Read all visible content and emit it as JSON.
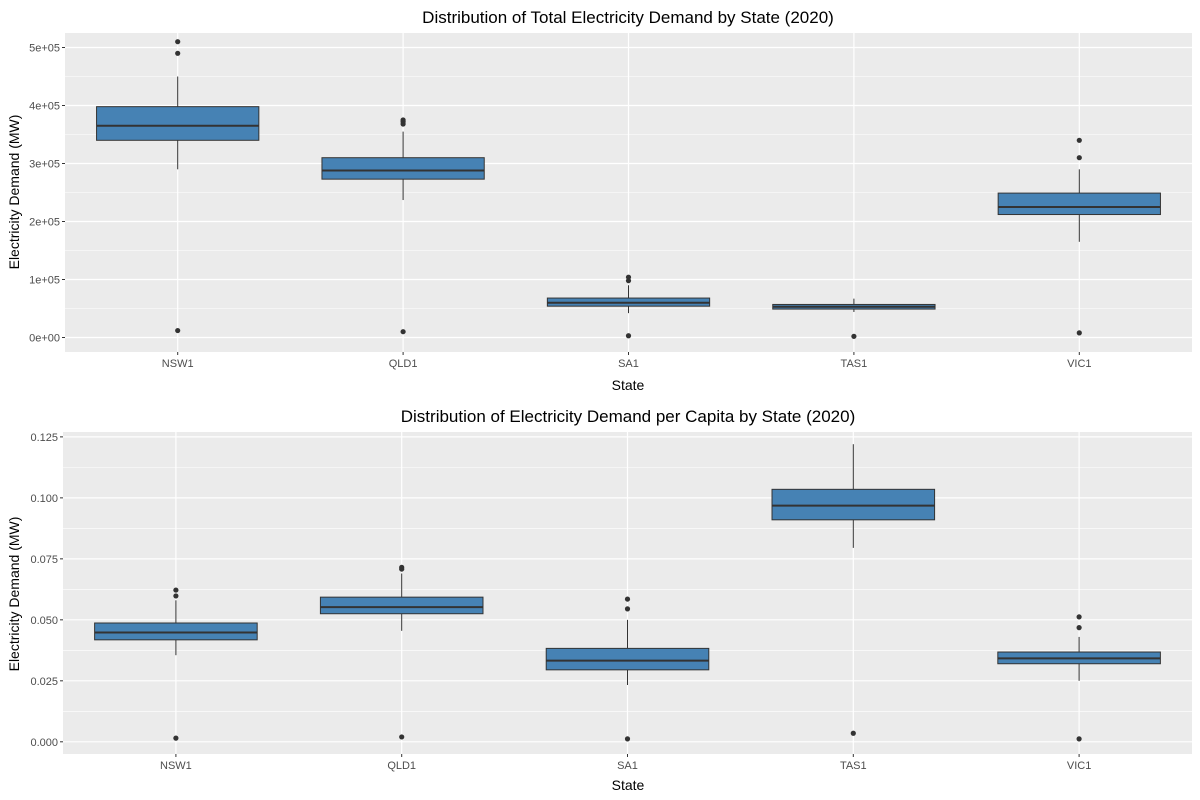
{
  "chart_data": [
    {
      "type": "boxplot",
      "title": "Distribution of Total Electricity Demand by State (2020)",
      "xlabel": "State",
      "ylabel": "Electricity Demand (MW)",
      "ylim": [
        -25000,
        525000
      ],
      "ytick_values": [
        0,
        100000,
        200000,
        300000,
        400000,
        500000
      ],
      "ytick_labels": [
        "0e+00",
        "1e+05",
        "2e+05",
        "3e+05",
        "4e+05",
        "5e+05"
      ],
      "grid": true,
      "categories": [
        "NSW1",
        "QLD1",
        "SA1",
        "TAS1",
        "VIC1"
      ],
      "boxes": [
        {
          "q1": 340000,
          "median": 365000,
          "q3": 398000,
          "whisker_low": 290000,
          "whisker_high": 450000,
          "outliers": [
            510000,
            490000,
            12000
          ]
        },
        {
          "q1": 273000,
          "median": 288000,
          "q3": 310000,
          "whisker_low": 237000,
          "whisker_high": 355000,
          "outliers": [
            375000,
            372000,
            368000,
            10000
          ]
        },
        {
          "q1": 54000,
          "median": 60000,
          "q3": 68000,
          "whisker_low": 42000,
          "whisker_high": 90000,
          "outliers": [
            104000,
            98000,
            3000
          ]
        },
        {
          "q1": 49000,
          "median": 53000,
          "q3": 57000,
          "whisker_low": 44000,
          "whisker_high": 67000,
          "outliers": [
            2000
          ]
        },
        {
          "q1": 212000,
          "median": 225000,
          "q3": 249000,
          "whisker_low": 165000,
          "whisker_high": 290000,
          "outliers": [
            340000,
            310000,
            8000
          ]
        }
      ]
    },
    {
      "type": "boxplot",
      "title": "Distribution of Electricity Demand per Capita by State (2020)",
      "xlabel": "State",
      "ylabel": "Electricity Demand (MW)",
      "ylim": [
        -0.005,
        0.127
      ],
      "ytick_values": [
        0,
        0.025,
        0.05,
        0.075,
        0.1,
        0.125
      ],
      "ytick_labels": [
        "0.000",
        "0.025",
        "0.050",
        "0.075",
        "0.100",
        "0.125"
      ],
      "grid": true,
      "categories": [
        "NSW1",
        "QLD1",
        "SA1",
        "TAS1",
        "VIC1"
      ],
      "boxes": [
        {
          "q1": 0.0418,
          "median": 0.0448,
          "q3": 0.0487,
          "whisker_low": 0.0355,
          "whisker_high": 0.058,
          "outliers": [
            0.0622,
            0.0598,
            0.0015
          ]
        },
        {
          "q1": 0.0525,
          "median": 0.0552,
          "q3": 0.0593,
          "whisker_low": 0.0455,
          "whisker_high": 0.069,
          "outliers": [
            0.0715,
            0.0708,
            0.002
          ]
        },
        {
          "q1": 0.0295,
          "median": 0.0333,
          "q3": 0.0383,
          "whisker_low": 0.0233,
          "whisker_high": 0.05,
          "outliers": [
            0.0585,
            0.0545,
            0.0012
          ]
        },
        {
          "q1": 0.091,
          "median": 0.0968,
          "q3": 0.1035,
          "whisker_low": 0.0795,
          "whisker_high": 0.122,
          "outliers": [
            0.0035
          ]
        },
        {
          "q1": 0.032,
          "median": 0.0342,
          "q3": 0.0368,
          "whisker_low": 0.025,
          "whisker_high": 0.043,
          "outliers": [
            0.0512,
            0.0468,
            0.0012
          ]
        }
      ]
    }
  ],
  "colors": {
    "panel_background": "#ebebeb",
    "grid_line": "#ffffff",
    "box_fill": "#4682b4",
    "box_stroke": "#333333",
    "outlier": "#333333"
  }
}
